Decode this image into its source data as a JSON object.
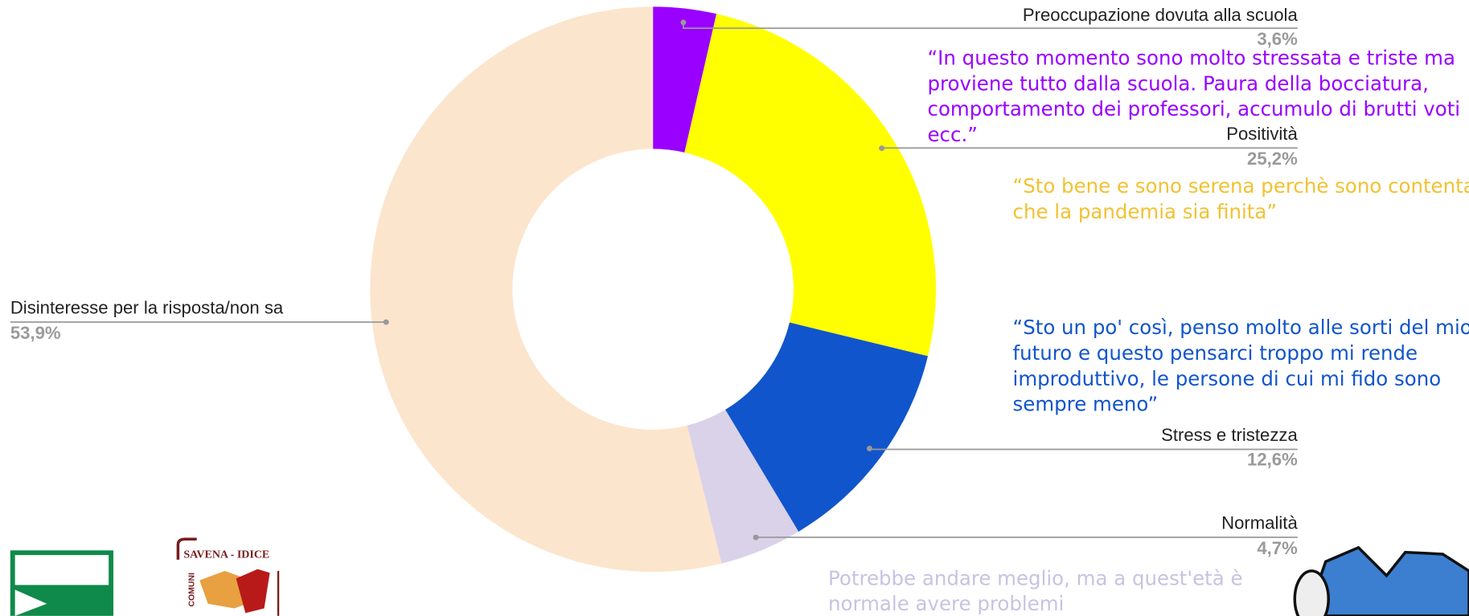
{
  "chart_data": {
    "type": "pie",
    "donut": true,
    "categories": [
      "Preoccupazione dovuta alla scuola",
      "Positività",
      "Stress e tristezza",
      "Normalità",
      "Disinteresse per la risposta/non sa"
    ],
    "values": [
      3.6,
      25.2,
      12.6,
      4.7,
      53.9
    ],
    "value_labels": [
      "3,6%",
      "25,2%",
      "12,6%",
      "4,7%",
      "53,9%"
    ],
    "colors": [
      "#9900ff",
      "#ffff00",
      "#1155cc",
      "#d9d2e9",
      "#fce5cd"
    ]
  },
  "quotes": [
    {
      "color": "#9900ff",
      "lines": [
        "“In questo momento sono molto stressata e triste ma",
        "proviene tutto dalla scuola. Paura della bocciatura,",
        "comportamento dei professori, accumulo di brutti voti",
        "ecc.”"
      ]
    },
    {
      "color": "#f1c232",
      "lines": [
        "“Sto bene e sono serena perchè sono contenta",
        "che la pandemia sia finita”"
      ]
    },
    {
      "color": "#1155cc",
      "lines": [
        "“Sto un po' così, penso molto alle sorti del mio",
        "futuro e questo pensarci troppo mi rende",
        "improduttivo, le persone di cui mi fido sono",
        "sempre meno”"
      ]
    },
    {
      "color": "#c9c2e2",
      "lines": [
        "Potrebbe andare meglio, ma a quest'età è",
        "normale avere problemi"
      ]
    }
  ],
  "logos": {
    "savena": "SAVENA - IDICE",
    "comuni": "COMUNI"
  }
}
